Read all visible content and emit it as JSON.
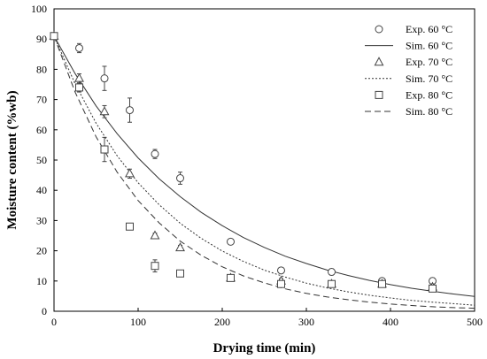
{
  "chart_data": {
    "type": "scatter",
    "title": "",
    "xlabel": "Drying time (min)",
    "ylabel": "Moisture content (%wb)",
    "xlim": [
      0,
      500
    ],
    "ylim": [
      0,
      100
    ],
    "xticks": [
      0,
      100,
      200,
      300,
      400,
      500
    ],
    "yticks": [
      0,
      10,
      20,
      30,
      40,
      50,
      60,
      70,
      80,
      90,
      100
    ],
    "grid": false,
    "legend_position": "top-right",
    "colors": {
      "marker": "#444444",
      "line": "#333333"
    },
    "series": [
      {
        "name": "Exp. 60 °C",
        "kind": "scatter",
        "marker": "circle",
        "x": [
          0,
          30,
          60,
          90,
          120,
          150,
          210,
          270,
          330,
          390,
          450
        ],
        "y": [
          91,
          87,
          77,
          66.5,
          52,
          44,
          23,
          13.5,
          13,
          10,
          10
        ],
        "err": [
          1,
          1.5,
          4,
          4,
          1.5,
          2,
          0.8,
          0.8,
          1,
          0.8,
          1
        ]
      },
      {
        "name": "Sim. 60 °C",
        "kind": "line",
        "dash": "solid",
        "x": [
          0,
          25,
          50,
          75,
          100,
          125,
          150,
          175,
          200,
          225,
          250,
          275,
          300,
          325,
          350,
          375,
          400,
          425,
          450,
          475,
          500
        ],
        "y": [
          91,
          78.6,
          67.9,
          58.7,
          50.7,
          43.8,
          37.9,
          32.7,
          28.3,
          24.4,
          21.1,
          18.2,
          15.8,
          13.6,
          11.8,
          10.2,
          8.8,
          7.6,
          6.6,
          5.7,
          4.9
        ]
      },
      {
        "name": "Exp. 70 °C",
        "kind": "scatter",
        "marker": "triangle",
        "x": [
          0,
          30,
          60,
          90,
          120,
          150,
          210,
          270,
          330,
          390,
          450
        ],
        "y": [
          91,
          77,
          66,
          45.5,
          25,
          21,
          11,
          10,
          9,
          9,
          8
        ],
        "err": [
          1,
          1.5,
          2,
          1.5,
          0.8,
          0.8,
          0.8,
          0.8,
          1,
          0.8,
          1
        ]
      },
      {
        "name": "Sim. 70 °C",
        "kind": "line",
        "dash": "dotted",
        "x": [
          0,
          25,
          50,
          75,
          100,
          125,
          150,
          175,
          200,
          225,
          250,
          275,
          300,
          325,
          350,
          375,
          400,
          425,
          450,
          475,
          500
        ],
        "y": [
          91,
          75.2,
          62.2,
          51.4,
          42.5,
          35.2,
          29.1,
          24.1,
          19.9,
          16.5,
          13.6,
          11.3,
          9.3,
          7.7,
          6.4,
          5.3,
          4.4,
          3.6,
          3.0,
          2.5,
          2.0
        ]
      },
      {
        "name": "Exp. 80 °C",
        "kind": "scatter",
        "marker": "square",
        "x": [
          0,
          30,
          60,
          90,
          120,
          150,
          210,
          270,
          330,
          390,
          450
        ],
        "y": [
          91,
          74,
          53.5,
          28,
          15,
          12.5,
          11,
          9,
          9,
          9,
          7.5
        ],
        "err": [
          1,
          1.5,
          4,
          1,
          2,
          0.8,
          1,
          0.8,
          1,
          0.8,
          1
        ]
      },
      {
        "name": "Sim. 80 °C",
        "kind": "line",
        "dash": "dashed",
        "x": [
          0,
          25,
          50,
          75,
          100,
          125,
          150,
          175,
          200,
          225,
          250,
          275,
          300,
          325,
          350,
          375,
          400,
          425,
          450,
          475,
          500
        ],
        "y": [
          91,
          72.5,
          57.7,
          46.0,
          36.6,
          29.2,
          23.2,
          18.5,
          14.7,
          11.7,
          9.4,
          7.4,
          5.9,
          4.7,
          3.8,
          3.0,
          2.4,
          1.9,
          1.5,
          1.2,
          1.0
        ]
      }
    ]
  }
}
